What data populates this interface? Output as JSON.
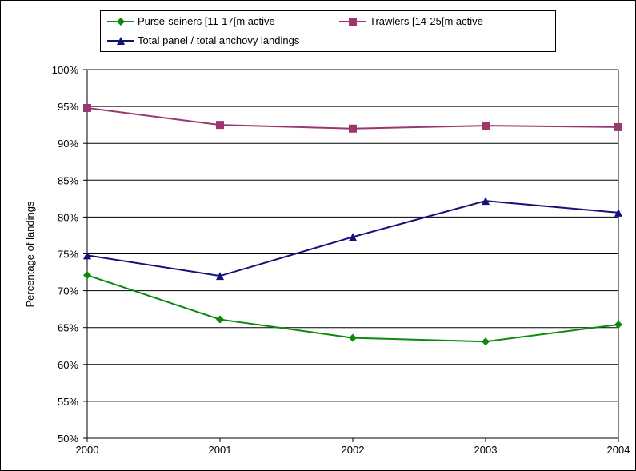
{
  "chart_data": {
    "type": "line",
    "title": "",
    "xlabel": "",
    "ylabel": "Percentage of landings",
    "x": [
      "2000",
      "2001",
      "2002",
      "2003",
      "2004"
    ],
    "ylim": [
      0.5,
      1.0
    ],
    "yticks": [
      "50%",
      "55%",
      "60%",
      "65%",
      "70%",
      "75%",
      "80%",
      "85%",
      "90%",
      "95%",
      "100%"
    ],
    "grid": "horizontal",
    "legend_position": "top",
    "series": [
      {
        "name": "Purse-seiners [11-17[m active",
        "marker": "diamond",
        "color": "#0b8a0b",
        "values": [
          0.721,
          0.661,
          0.636,
          0.631,
          0.654
        ]
      },
      {
        "name": "Trawlers [14-25[m active",
        "marker": "square",
        "color": "#9c3670",
        "values": [
          0.948,
          0.925,
          0.92,
          0.924,
          0.922
        ]
      },
      {
        "name": "Total panel / total anchovy landings",
        "marker": "triangle",
        "color": "#12127a",
        "values": [
          0.748,
          0.72,
          0.773,
          0.822,
          0.806
        ]
      }
    ]
  }
}
